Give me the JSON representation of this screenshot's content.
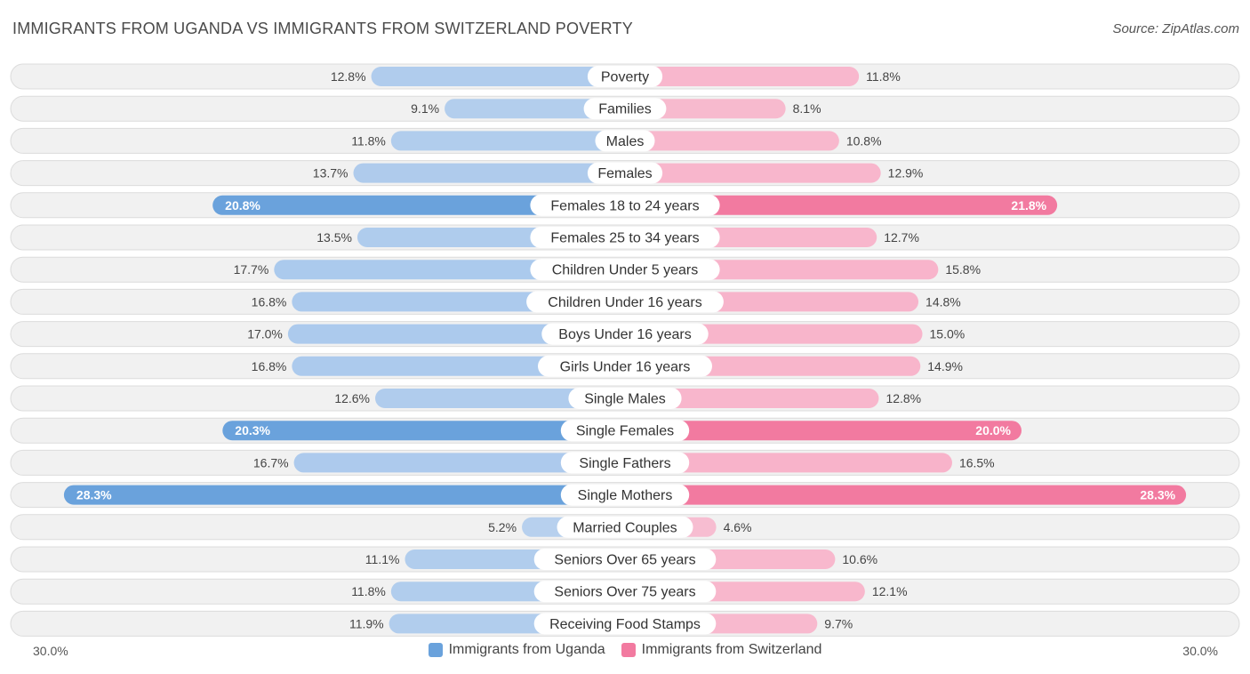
{
  "header": {
    "title": "IMMIGRANTS FROM UGANDA VS IMMIGRANTS FROM SWITZERLAND POVERTY",
    "source": "Source: ZipAtlas.com"
  },
  "colors": {
    "left_strong": "#6aa2dc",
    "left_light": "#a9c8ec",
    "right_strong": "#f27aa0",
    "right_light": "#f8b0c8",
    "track": "#f1f1f1",
    "track_border": "#dcdcdc"
  },
  "axis": {
    "left_label": "30.0%",
    "right_label": "30.0%"
  },
  "chart_data": {
    "type": "bar",
    "orientation": "horizontal-diverging",
    "title": "IMMIGRANTS FROM UGANDA VS IMMIGRANTS FROM SWITZERLAND POVERTY",
    "xlim": [
      0,
      30
    ],
    "categories": [
      "Poverty",
      "Families",
      "Males",
      "Females",
      "Females 18 to 24 years",
      "Females 25 to 34 years",
      "Children Under 5 years",
      "Children Under 16 years",
      "Boys Under 16 years",
      "Girls Under 16 years",
      "Single Males",
      "Single Females",
      "Single Fathers",
      "Single Mothers",
      "Married Couples",
      "Seniors Over 65 years",
      "Seniors Over 75 years",
      "Receiving Food Stamps"
    ],
    "series": [
      {
        "name": "Immigrants from Uganda",
        "side": "left",
        "values": [
          12.8,
          9.1,
          11.8,
          13.7,
          20.8,
          13.5,
          17.7,
          16.8,
          17.0,
          16.8,
          12.6,
          20.3,
          16.7,
          28.3,
          5.2,
          11.1,
          11.8,
          11.9
        ],
        "labels": [
          "12.8%",
          "9.1%",
          "11.8%",
          "13.7%",
          "20.8%",
          "13.5%",
          "17.7%",
          "16.8%",
          "17.0%",
          "16.8%",
          "12.6%",
          "20.3%",
          "16.7%",
          "28.3%",
          "5.2%",
          "11.1%",
          "11.8%",
          "11.9%"
        ]
      },
      {
        "name": "Immigrants from Switzerland",
        "side": "right",
        "values": [
          11.8,
          8.1,
          10.8,
          12.9,
          21.8,
          12.7,
          15.8,
          14.8,
          15.0,
          14.9,
          12.8,
          20.0,
          16.5,
          28.3,
          4.6,
          10.6,
          12.1,
          9.7
        ],
        "labels": [
          "11.8%",
          "8.1%",
          "10.8%",
          "12.9%",
          "21.8%",
          "12.7%",
          "15.8%",
          "14.8%",
          "15.0%",
          "14.9%",
          "12.8%",
          "20.0%",
          "16.5%",
          "28.3%",
          "4.6%",
          "10.6%",
          "12.1%",
          "9.7%"
        ]
      }
    ],
    "legend": [
      "Immigrants from Uganda",
      "Immigrants from Switzerland"
    ],
    "legend_position": "bottom-center"
  }
}
